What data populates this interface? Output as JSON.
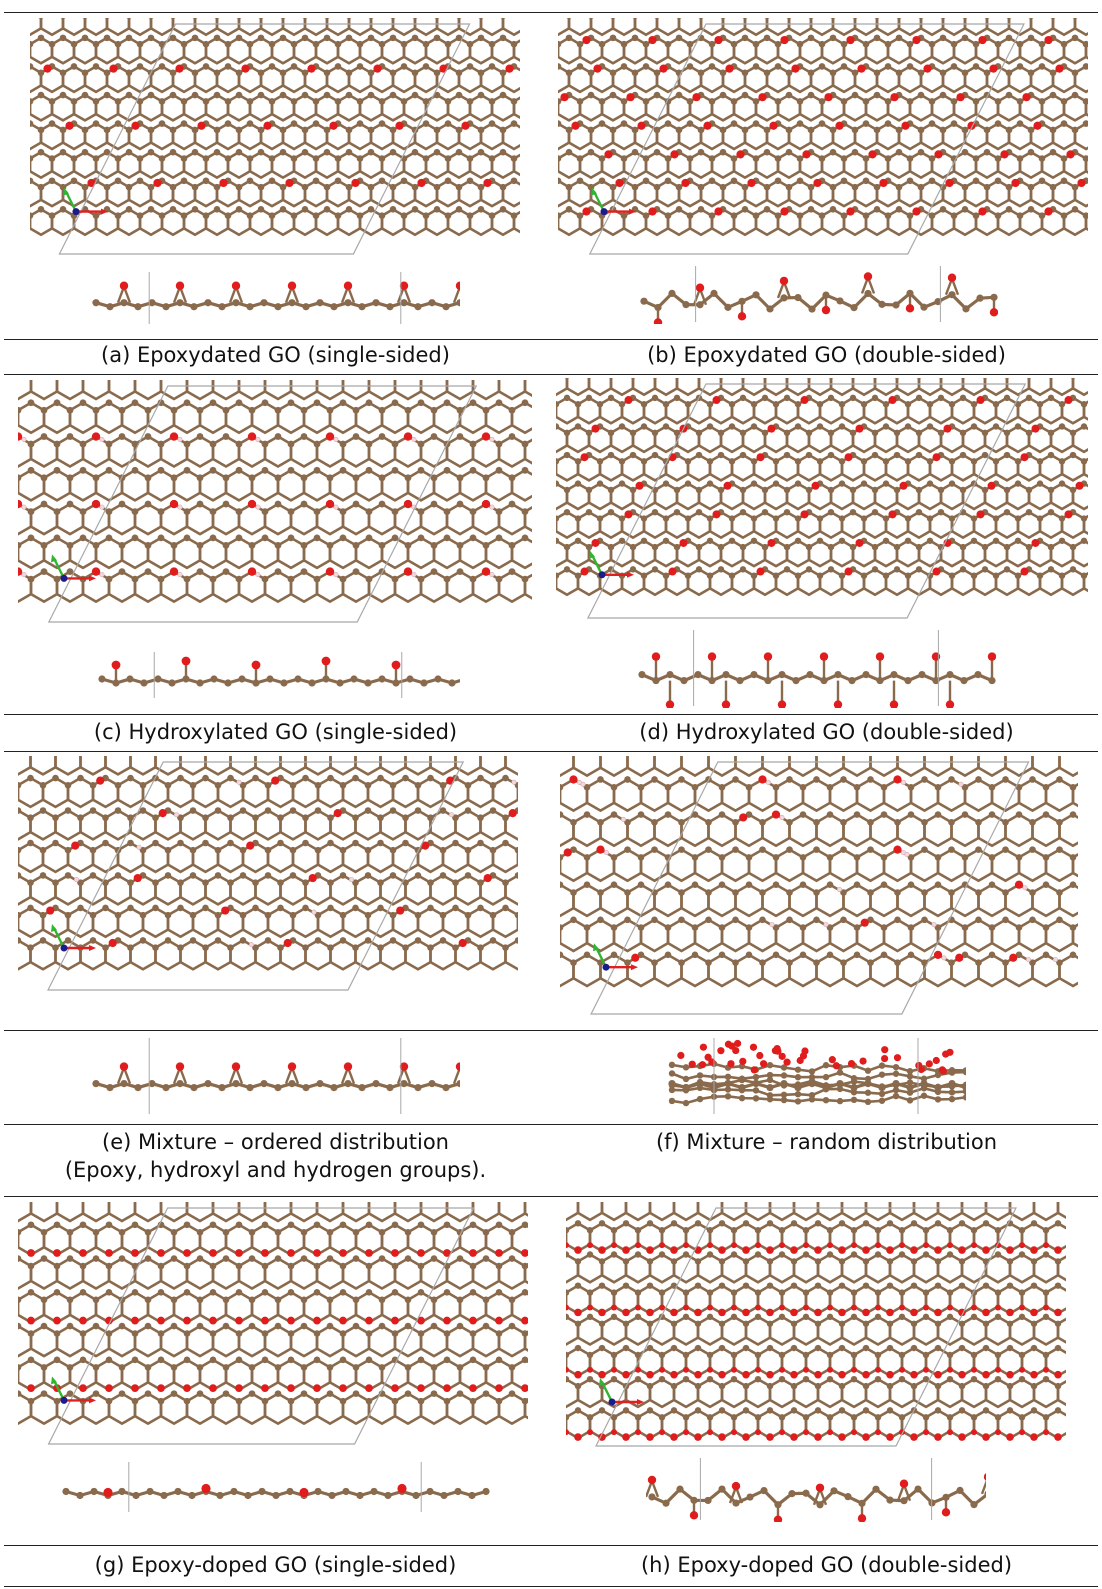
{
  "figure": {
    "panels": [
      {
        "id": "a",
        "caption": "(a) Epoxydated GO (single-sided)",
        "pattern": "epoxy-single"
      },
      {
        "id": "b",
        "caption": "(b) Epoxydated GO (double-sided)",
        "pattern": "epoxy-double"
      },
      {
        "id": "c",
        "caption": "(c) Hydroxylated GO (single-sided)",
        "pattern": "hydroxyl-single"
      },
      {
        "id": "d",
        "caption": "(d) Hydroxylated GO (double-sided)",
        "pattern": "hydroxyl-double"
      },
      {
        "id": "e",
        "caption": "(e) Mixture – ordered distribution",
        "caption2": "(Epoxy, hydroxyl and hydrogen groups).",
        "pattern": "mixture-ordered"
      },
      {
        "id": "f",
        "caption": "(f) Mixture – random distribution",
        "pattern": "mixture-random"
      },
      {
        "id": "g",
        "caption": "(g) Epoxy-doped GO (single-sided)",
        "pattern": "epoxy-doped-single"
      },
      {
        "id": "h",
        "caption": "(h) Epoxy-doped GO (double-sided)",
        "pattern": "epoxy-doped-double"
      }
    ],
    "colors": {
      "carbon": "#8a6a4c",
      "oxygen": "#e01c1c",
      "hydrogen": "#f3d9dd",
      "cell": "#a8a8a8",
      "axis_a": "#e02020",
      "axis_b": "#2fb52f",
      "axis_origin": "#1b1b8c"
    }
  }
}
